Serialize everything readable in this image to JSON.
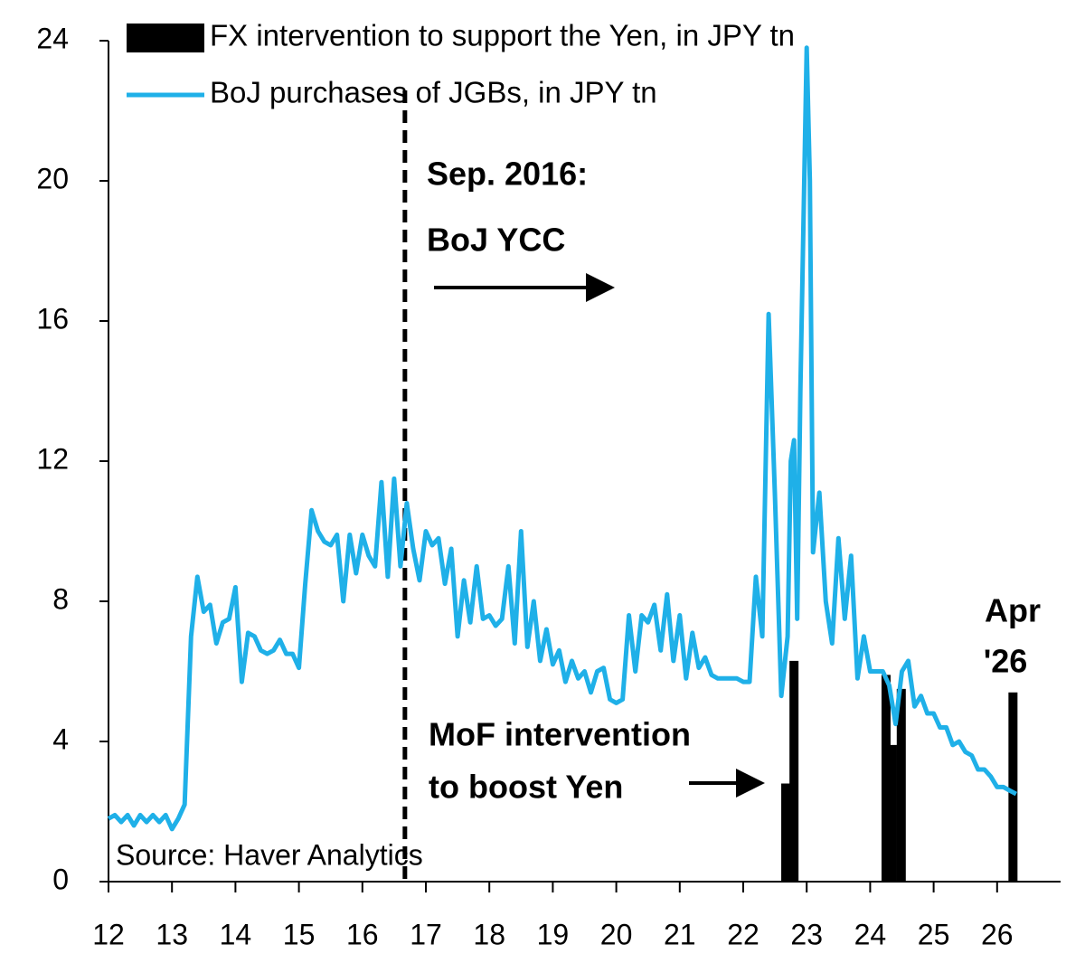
{
  "chart_data": {
    "type": "combo",
    "xlim": [
      12,
      27
    ],
    "xticks": [
      12,
      13,
      14,
      15,
      16,
      17,
      18,
      19,
      20,
      21,
      22,
      23,
      24,
      25,
      26
    ],
    "ylim": [
      0,
      24
    ],
    "yticks": [
      0,
      4,
      8,
      12,
      16,
      20,
      24
    ],
    "legend": "top-left",
    "vline_x": 16.67,
    "annotations": [
      "Sep. 2016:",
      "BoJ YCC",
      "MoF intervention",
      "to boost Yen",
      "Apr",
      "'26"
    ],
    "source": "Source: Haver Analytics",
    "series": [
      {
        "name": "FX intervention to support the Yen, in JPY tn",
        "type": "bar",
        "color": "#000000",
        "x": [
          22.67,
          22.8,
          24.25,
          24.35,
          24.49,
          26.25
        ],
        "values": [
          2.8,
          6.3,
          5.9,
          3.9,
          5.5,
          5.4
        ]
      },
      {
        "name": "BoJ purchases of JGBs, in JPY tn",
        "type": "line",
        "color": "#1fb0e8",
        "x": [
          12.0,
          12.1,
          12.2,
          12.3,
          12.4,
          12.5,
          12.6,
          12.7,
          12.8,
          12.9,
          13.0,
          13.1,
          13.2,
          13.3,
          13.4,
          13.5,
          13.6,
          13.7,
          13.8,
          13.9,
          14.0,
          14.1,
          14.2,
          14.3,
          14.4,
          14.5,
          14.6,
          14.7,
          14.8,
          14.9,
          15.0,
          15.1,
          15.2,
          15.3,
          15.4,
          15.5,
          15.6,
          15.7,
          15.8,
          15.9,
          16.0,
          16.1,
          16.2,
          16.3,
          16.4,
          16.5,
          16.6,
          16.7,
          16.8,
          16.9,
          17.0,
          17.1,
          17.2,
          17.3,
          17.4,
          17.5,
          17.6,
          17.7,
          17.8,
          17.9,
          18.0,
          18.1,
          18.2,
          18.3,
          18.4,
          18.5,
          18.6,
          18.7,
          18.8,
          18.9,
          19.0,
          19.1,
          19.2,
          19.3,
          19.4,
          19.5,
          19.6,
          19.7,
          19.8,
          19.9,
          20.0,
          20.1,
          20.2,
          20.3,
          20.4,
          20.5,
          20.6,
          20.7,
          20.8,
          20.9,
          21.0,
          21.1,
          21.2,
          21.3,
          21.4,
          21.5,
          21.6,
          21.7,
          21.8,
          21.9,
          22.0,
          22.1,
          22.2,
          22.3,
          22.4,
          22.5,
          22.6,
          22.7,
          22.75,
          22.8,
          22.85,
          22.9,
          23.0,
          23.05,
          23.1,
          23.2,
          23.3,
          23.4,
          23.5,
          23.6,
          23.7,
          23.8,
          23.9,
          24.0,
          24.1,
          24.2,
          24.3,
          24.4,
          24.5,
          24.6,
          24.7,
          24.8,
          24.9,
          25.0,
          25.1,
          25.2,
          25.3,
          25.4,
          25.5,
          25.6,
          25.7,
          25.8,
          25.9,
          26.0,
          26.1,
          26.2,
          26.3
        ],
        "values": [
          1.8,
          1.9,
          1.7,
          1.9,
          1.6,
          1.9,
          1.7,
          1.9,
          1.7,
          1.9,
          1.5,
          1.8,
          2.2,
          7.0,
          8.7,
          7.7,
          7.9,
          6.8,
          7.4,
          7.5,
          8.4,
          5.7,
          7.1,
          7.0,
          6.6,
          6.5,
          6.6,
          6.9,
          6.5,
          6.5,
          6.1,
          8.5,
          10.6,
          10.0,
          9.7,
          9.6,
          9.9,
          8.0,
          9.9,
          8.8,
          9.9,
          9.3,
          9.0,
          11.4,
          8.7,
          11.5,
          9.0,
          10.8,
          9.5,
          8.6,
          10.0,
          9.6,
          9.8,
          8.5,
          9.5,
          7.0,
          8.6,
          7.4,
          9.0,
          7.5,
          7.6,
          7.3,
          7.5,
          9.0,
          6.8,
          10.0,
          6.7,
          8.0,
          6.3,
          7.2,
          6.2,
          6.6,
          5.7,
          6.3,
          5.8,
          6.0,
          5.4,
          6.0,
          6.1,
          5.2,
          5.1,
          5.2,
          7.6,
          6.0,
          7.6,
          7.4,
          7.9,
          6.6,
          8.2,
          6.3,
          7.6,
          5.8,
          7.1,
          6.1,
          6.4,
          5.9,
          5.8,
          5.8,
          5.8,
          5.8,
          5.7,
          5.7,
          8.7,
          7.0,
          16.2,
          11.0,
          5.3,
          7.0,
          12.0,
          12.6,
          7.5,
          14.0,
          23.8,
          20.0,
          9.4,
          11.1,
          8.0,
          6.8,
          9.8,
          7.5,
          9.3,
          5.8,
          7.0,
          6.0,
          6.0,
          6.0,
          5.6,
          4.5,
          6.0,
          6.3,
          5.0,
          5.3,
          4.8,
          4.8,
          4.4,
          4.4,
          3.9,
          4.0,
          3.7,
          3.6,
          3.2,
          3.2,
          3.0,
          2.7,
          2.7,
          2.6,
          2.5
        ]
      }
    ]
  }
}
